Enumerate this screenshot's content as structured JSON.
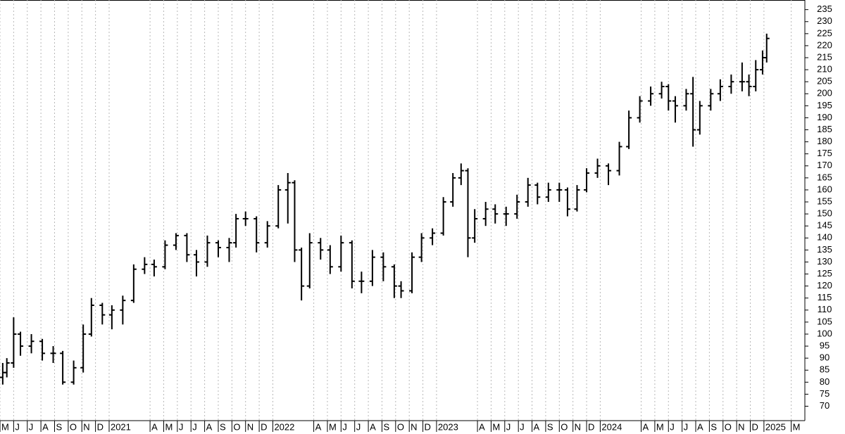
{
  "chart_data": {
    "type": "ohlc",
    "x": [
      0.2,
      0.5,
      1.0,
      1.5,
      2.3,
      3.1,
      3.9,
      4.6,
      5.4,
      6.1,
      6.7,
      7.5,
      8.2,
      9.0,
      9.8,
      10.6,
      11.3,
      12.1,
      12.9,
      13.7,
      14.4,
      15.2,
      16.0,
      16.8,
      17.3,
      18.0,
      18.8,
      19.6,
      20.4,
      21.1,
      21.6,
      22.1,
      22.7,
      23.5,
      24.2,
      25.0,
      25.8,
      26.5,
      27.3,
      28.1,
      28.9,
      29.4,
      30.2,
      30.9,
      31.7,
      32.5,
      33.2,
      33.8,
      34.3,
      34.8,
      35.6,
      36.3,
      37.1,
      37.9,
      38.7,
      39.4,
      40.2,
      41.0,
      41.6,
      42.3,
      43.0,
      43.8,
      44.6,
      45.4,
      46.1,
      46.9,
      47.7,
      48.5,
      49.0,
      49.5,
      50.3,
      50.8,
      51.3,
      52.1,
      52.8,
      53.6,
      54.4,
      54.9,
      55.4,
      55.9,
      56.2
    ],
    "open": [
      82,
      84,
      88,
      100,
      95,
      97,
      92,
      92,
      80,
      86,
      100,
      112,
      108,
      110,
      114,
      127,
      129,
      128,
      137,
      141,
      133,
      130,
      138,
      136,
      138,
      148,
      148,
      138,
      145,
      160,
      163,
      135,
      120,
      138,
      135,
      128,
      138,
      122,
      122,
      132,
      128,
      120,
      118,
      132,
      140,
      142,
      155,
      165,
      168,
      140,
      148,
      152,
      150,
      150,
      155,
      162,
      157,
      160,
      160,
      152,
      160,
      167,
      170,
      168,
      178,
      190,
      197,
      200,
      203,
      197,
      195,
      200,
      185,
      195,
      200,
      203,
      205,
      205,
      203,
      210,
      215
    ],
    "high": [
      88,
      90,
      107,
      101,
      100,
      98,
      95,
      93,
      89,
      104,
      115,
      113,
      112,
      116,
      129,
      132,
      131,
      139,
      142,
      142,
      135,
      141,
      139,
      140,
      150,
      151,
      149,
      147,
      162,
      167,
      164,
      136,
      142,
      140,
      137,
      141,
      139,
      126,
      135,
      134,
      129,
      122,
      134,
      142,
      144,
      157,
      167,
      171,
      169,
      152,
      155,
      154,
      153,
      158,
      165,
      163,
      163,
      163,
      161,
      162,
      169,
      173,
      171,
      180,
      193,
      199,
      203,
      205,
      204,
      199,
      202,
      207,
      197,
      202,
      206,
      208,
      213,
      208,
      214,
      218,
      225
    ],
    "low": [
      79,
      82,
      86,
      91,
      92,
      89,
      88,
      79,
      79,
      84,
      99,
      104,
      102,
      104,
      113,
      125,
      124,
      127,
      135,
      130,
      124,
      128,
      132,
      130,
      136,
      145,
      134,
      136,
      144,
      146,
      130,
      114,
      119,
      131,
      125,
      126,
      119,
      117,
      120,
      122,
      115,
      115,
      117,
      130,
      137,
      141,
      153,
      162,
      132,
      138,
      145,
      146,
      145,
      148,
      153,
      154,
      155,
      155,
      149,
      151,
      159,
      165,
      162,
      166,
      177,
      188,
      195,
      198,
      193,
      188,
      193,
      178,
      183,
      193,
      197,
      200,
      201,
      199,
      201,
      208,
      213
    ],
    "close": [
      84,
      88,
      100,
      95,
      97,
      92,
      92,
      80,
      86,
      100,
      112,
      108,
      110,
      114,
      127,
      129,
      128,
      137,
      141,
      133,
      130,
      138,
      136,
      138,
      148,
      148,
      138,
      145,
      160,
      163,
      135,
      120,
      138,
      135,
      128,
      138,
      122,
      122,
      132,
      128,
      120,
      118,
      132,
      140,
      142,
      155,
      165,
      168,
      140,
      148,
      152,
      150,
      150,
      155,
      162,
      157,
      160,
      160,
      152,
      160,
      167,
      170,
      168,
      178,
      190,
      197,
      200,
      203,
      197,
      195,
      200,
      185,
      195,
      200,
      203,
      205,
      205,
      203,
      210,
      215,
      223
    ],
    "color": "#000000",
    "xlim": [
      0,
      59
    ],
    "xticks": [
      {
        "value": 0,
        "label": "M"
      },
      {
        "value": 1,
        "label": "J"
      },
      {
        "value": 2,
        "label": "J"
      },
      {
        "value": 3,
        "label": "A"
      },
      {
        "value": 4,
        "label": "S"
      },
      {
        "value": 5,
        "label": "O"
      },
      {
        "value": 6,
        "label": "N"
      },
      {
        "value": 7,
        "label": "D"
      },
      {
        "value": 8,
        "label": "2021"
      },
      {
        "value": 11,
        "label": "A"
      },
      {
        "value": 12,
        "label": "M"
      },
      {
        "value": 13,
        "label": "J"
      },
      {
        "value": 14,
        "label": "J"
      },
      {
        "value": 15,
        "label": "A"
      },
      {
        "value": 16,
        "label": "S"
      },
      {
        "value": 17,
        "label": "O"
      },
      {
        "value": 18,
        "label": "N"
      },
      {
        "value": 19,
        "label": "D"
      },
      {
        "value": 20,
        "label": "2022"
      },
      {
        "value": 23,
        "label": "A"
      },
      {
        "value": 24,
        "label": "M"
      },
      {
        "value": 25,
        "label": "J"
      },
      {
        "value": 26,
        "label": "J"
      },
      {
        "value": 27,
        "label": "A"
      },
      {
        "value": 28,
        "label": "S"
      },
      {
        "value": 29,
        "label": "O"
      },
      {
        "value": 30,
        "label": "N"
      },
      {
        "value": 31,
        "label": "D"
      },
      {
        "value": 32,
        "label": "2023"
      },
      {
        "value": 35,
        "label": "A"
      },
      {
        "value": 36,
        "label": "M"
      },
      {
        "value": 37,
        "label": "J"
      },
      {
        "value": 38,
        "label": "J"
      },
      {
        "value": 39,
        "label": "A"
      },
      {
        "value": 40,
        "label": "S"
      },
      {
        "value": 41,
        "label": "O"
      },
      {
        "value": 42,
        "label": "N"
      },
      {
        "value": 43,
        "label": "D"
      },
      {
        "value": 44,
        "label": "2024"
      },
      {
        "value": 47,
        "label": "A"
      },
      {
        "value": 48,
        "label": "M"
      },
      {
        "value": 49,
        "label": "J"
      },
      {
        "value": 50,
        "label": "J"
      },
      {
        "value": 51,
        "label": "A"
      },
      {
        "value": 52,
        "label": "S"
      },
      {
        "value": 53,
        "label": "O"
      },
      {
        "value": 54,
        "label": "N"
      },
      {
        "value": 55,
        "label": "D"
      },
      {
        "value": 56,
        "label": "2025"
      },
      {
        "value": 58,
        "label": "M"
      }
    ],
    "ylim": [
      64,
      239
    ],
    "yticks": [
      70,
      75,
      80,
      85,
      90,
      95,
      100,
      105,
      110,
      115,
      120,
      125,
      130,
      135,
      140,
      145,
      150,
      155,
      160,
      165,
      170,
      175,
      180,
      185,
      190,
      195,
      200,
      205,
      210,
      215,
      220,
      225,
      230,
      235
    ],
    "grid": true
  }
}
